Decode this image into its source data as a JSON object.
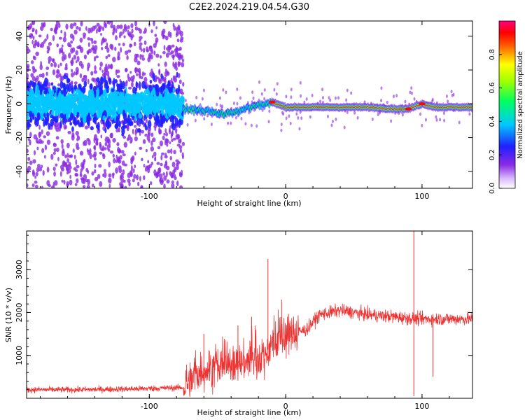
{
  "title": "C2E2.2024.219.04.54.G30",
  "colors": {
    "snr_line": "#ee3333",
    "axis": "#000000",
    "grid": "none"
  },
  "chart_data": [
    {
      "type": "heatmap",
      "title": "C2E2.2024.219.04.54.G30",
      "xlabel": "Height of straight line (km)",
      "ylabel": "Frequency (Hz)",
      "xlim": [
        -190,
        137
      ],
      "ylim": [
        -50,
        49
      ],
      "xticks": [
        -100,
        0,
        100
      ],
      "yticks": [
        -40,
        -20,
        0,
        20,
        40
      ],
      "colorbar": {
        "label": "Normalized spectral amplitude",
        "range": [
          0.0,
          1.0
        ],
        "ticks": [
          0.0,
          0.2,
          0.4,
          0.6,
          0.8
        ],
        "colormap": "rainbow (white-violet-blue-cyan-green-yellow-red-magenta)"
      },
      "features": [
        {
          "x_range": [
            -190,
            -75
          ],
          "description": "broadband noise",
          "freq_band": [
            -10,
            10
          ],
          "amplitude": "0.1-0.3",
          "scatter_band": [
            -50,
            49
          ]
        },
        {
          "x_range": [
            -75,
            -10
          ],
          "description": "signal trace",
          "freq_track": [
            [
              -75,
              -3
            ],
            [
              -60,
              -4
            ],
            [
              -45,
              -6
            ],
            [
              -35,
              -4
            ],
            [
              -25,
              -2
            ],
            [
              -15,
              0
            ],
            [
              -10,
              1
            ]
          ]
        },
        {
          "x_range": [
            -10,
            137
          ],
          "description": "strong narrowband signal",
          "freq_track": [
            [
              -10,
              1
            ],
            [
              0,
              -2
            ],
            [
              20,
              -2
            ],
            [
              60,
              -2
            ],
            [
              80,
              -3
            ],
            [
              90,
              -3
            ],
            [
              100,
              0
            ],
            [
              110,
              -2
            ],
            [
              137,
              -2
            ]
          ]
        }
      ]
    },
    {
      "type": "line",
      "xlabel": "Height of straight line (km)",
      "ylabel": "SNR (10 * v/v)",
      "xlim": [
        -190,
        137
      ],
      "ylim": [
        0,
        3900
      ],
      "xticks": [
        -100,
        0,
        100
      ],
      "yticks": [
        1000,
        2000,
        3000
      ],
      "series": [
        {
          "envelope": [
            {
              "x": -190,
              "y": 200
            },
            {
              "x": -150,
              "y": 200
            },
            {
              "x": -110,
              "y": 220
            },
            {
              "x": -75,
              "y": 250
            },
            {
              "x": -65,
              "y": 600
            },
            {
              "x": -40,
              "y": 800
            },
            {
              "x": -20,
              "y": 900
            },
            {
              "x": -5,
              "y": 1400
            },
            {
              "x": 5,
              "y": 1500
            },
            {
              "x": 15,
              "y": 1600
            },
            {
              "x": 25,
              "y": 1950
            },
            {
              "x": 40,
              "y": 2050
            },
            {
              "x": 60,
              "y": 1950
            },
            {
              "x": 80,
              "y": 1900
            },
            {
              "x": 95,
              "y": 1850
            },
            {
              "x": 110,
              "y": 1850
            },
            {
              "x": 137,
              "y": 1850
            }
          ],
          "spikes": [
            {
              "x": -13,
              "y": 3250
            },
            {
              "x": -3,
              "y": 2300
            },
            {
              "x": 94,
              "y": 3900
            },
            {
              "x": 94,
              "y": 50
            },
            {
              "x": 108,
              "y": 500
            },
            {
              "x": -60,
              "y": 1500
            },
            {
              "x": -35,
              "y": 1700
            },
            {
              "x": -25,
              "y": 1900
            }
          ]
        }
      ]
    }
  ]
}
